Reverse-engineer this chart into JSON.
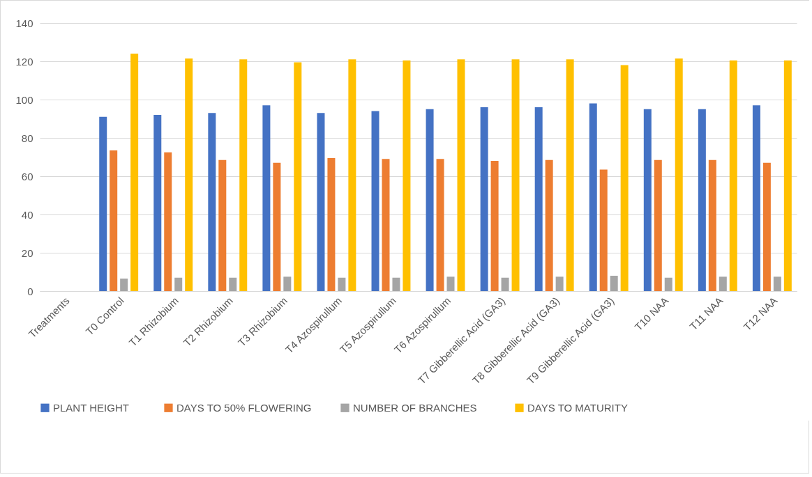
{
  "chart_data": {
    "type": "bar",
    "categories": [
      "Treatments",
      "T0 Control",
      "T1 Rhizobium",
      "T2 Rhizobium",
      "T3 Rhizobium",
      "T4 Azospirullum",
      "T5 Azospirullum",
      "T6 Azospirullum",
      "T7 Gibberellic  Acid (GA3)",
      "T8 Gibberellic  Acid (GA3)",
      "T9 Gibberellic  Acid (GA3)",
      "T10 NAA",
      "T11 NAA",
      "T12 NAA"
    ],
    "series": [
      {
        "name": "PLANT   HEIGHT",
        "color": "#4472c4",
        "values": [
          null,
          91,
          92,
          93,
          97,
          93,
          94,
          95,
          96,
          96,
          98,
          95,
          95,
          97
        ]
      },
      {
        "name": "DAYS TO 50% FLOWERING",
        "color": "#ed7d31",
        "values": [
          null,
          73.5,
          72.5,
          68.5,
          67,
          69.5,
          69,
          69,
          68,
          68.5,
          63.5,
          68.5,
          68.5,
          67
        ]
      },
      {
        "name": "NUMBER OF    BRANCHES",
        "color": "#a5a5a5",
        "values": [
          null,
          6.5,
          7,
          7,
          7.5,
          7,
          7,
          7.5,
          7,
          7.5,
          8,
          7,
          7.5,
          7.5
        ]
      },
      {
        "name": " DAYS TO MATURITY",
        "color": "#ffc000",
        "values": [
          null,
          124,
          121.5,
          121,
          119.5,
          121,
          120.5,
          121,
          121,
          121,
          118,
          121.5,
          120.5,
          120.5
        ]
      }
    ],
    "ylim": [
      0,
      140
    ],
    "yticks": [
      0,
      20,
      40,
      60,
      80,
      100,
      120,
      140
    ],
    "grid": "y",
    "legend": "bottom"
  }
}
